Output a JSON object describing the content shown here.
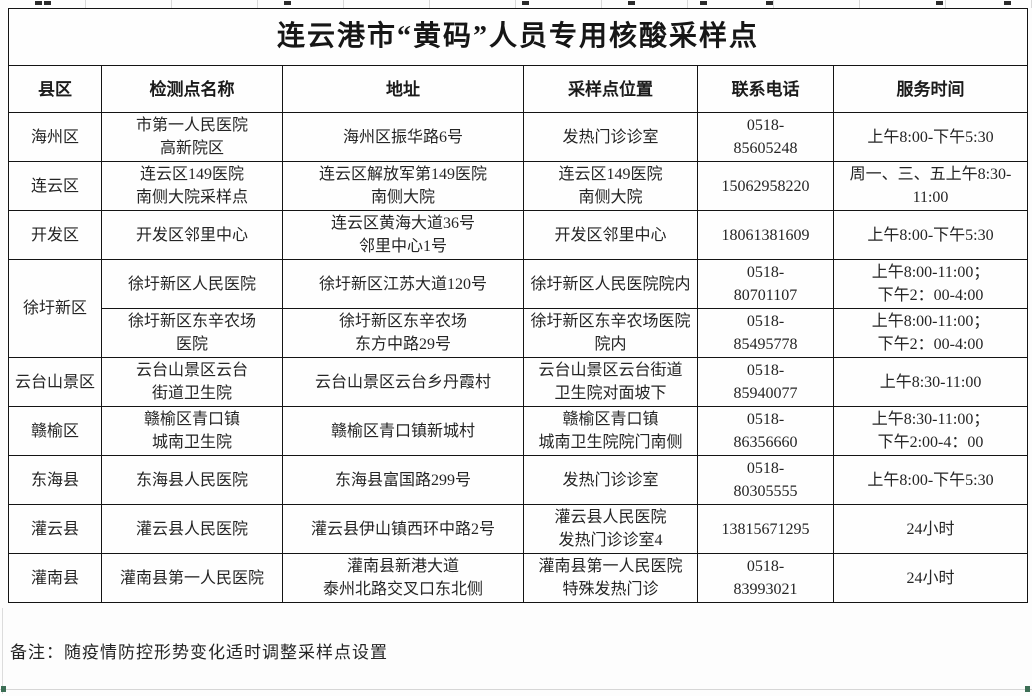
{
  "title": "连云港市“黄码”人员专用核酸采样点",
  "columns": [
    "县区",
    "检测点名称",
    "地址",
    "采样点位置",
    "联系电话",
    "服务时间"
  ],
  "rows": [
    {
      "district": "海州区",
      "district_rowspan": 1,
      "name": "市第一人民医院\n高新院区",
      "address": "海州区振华路6号",
      "location": "发热门诊诊室",
      "phone": "0518-\n85605248",
      "hours": "上午8:00-下午5:30"
    },
    {
      "district": "连云区",
      "district_rowspan": 1,
      "name": "连云区149医院\n南侧大院采样点",
      "address": "连云区解放军第149医院\n南侧大院",
      "location": "连云区149医院\n南侧大院",
      "phone": "15062958220",
      "hours": "周一、三、五上午8:30-\n11:00"
    },
    {
      "district": "开发区",
      "district_rowspan": 1,
      "name": "开发区邻里中心",
      "address": "连云区黄海大道36号\n邻里中心1号",
      "location": "开发区邻里中心",
      "phone": "18061381609",
      "hours": "上午8:00-下午5:30"
    },
    {
      "district": "徐圩新区",
      "district_rowspan": 2,
      "name": "徐圩新区人民医院",
      "address": "徐圩新区江苏大道120号",
      "location": "徐圩新区人民医院院内",
      "phone": "0518-\n80701107",
      "hours": "上午8:00-11:00；\n下午2：00-4:00"
    },
    {
      "district": null,
      "district_rowspan": 0,
      "name": "徐圩新区东辛农场\n医院",
      "address": "徐圩新区东辛农场\n东方中路29号",
      "location": "徐圩新区东辛农场医院\n院内",
      "phone": "0518-\n85495778",
      "hours": "上午8:00-11:00；\n下午2：00-4:00"
    },
    {
      "district": "云台山景区",
      "district_rowspan": 1,
      "name": "云台山景区云台\n街道卫生院",
      "address": "云台山景区云台乡丹霞村",
      "location": "云台山景区云台街道\n卫生院对面坡下",
      "phone": "0518-\n85940077",
      "hours": "上午8:30-11:00"
    },
    {
      "district": "赣榆区",
      "district_rowspan": 1,
      "name": "赣榆区青口镇\n城南卫生院",
      "address": "赣榆区青口镇新城村",
      "location": "赣榆区青口镇\n城南卫生院院门南侧",
      "phone": "0518-\n86356660",
      "hours": "上午8:30-11:00；\n下午2:00-4：00"
    },
    {
      "district": "东海县",
      "district_rowspan": 1,
      "name": "东海县人民医院",
      "address": "东海县富国路299号",
      "location": "发热门诊诊室",
      "phone": "0518-\n80305555",
      "hours": "上午8:00-下午5:30"
    },
    {
      "district": "灌云县",
      "district_rowspan": 1,
      "name": "灌云县人民医院",
      "address": "灌云县伊山镇西环中路2号",
      "location": "灌云县人民医院\n发热门诊诊室4",
      "phone": "13815671295",
      "hours": "24小时"
    },
    {
      "district": "灌南县",
      "district_rowspan": 1,
      "name": "灌南县第一人民医院",
      "address": "灌南县新港大道\n泰州北路交叉口东北侧",
      "location": "灌南县第一人民医院\n特殊发热门诊",
      "phone": "0518-\n83993021",
      "hours": "24小时"
    }
  ],
  "note": "备注：随疫情防控形势变化适时调整采样点设置",
  "colors": {
    "border": "#141414",
    "text": "#242424",
    "artifact_green": "#3c6e55",
    "faint_grid": "#d6d6d6"
  }
}
